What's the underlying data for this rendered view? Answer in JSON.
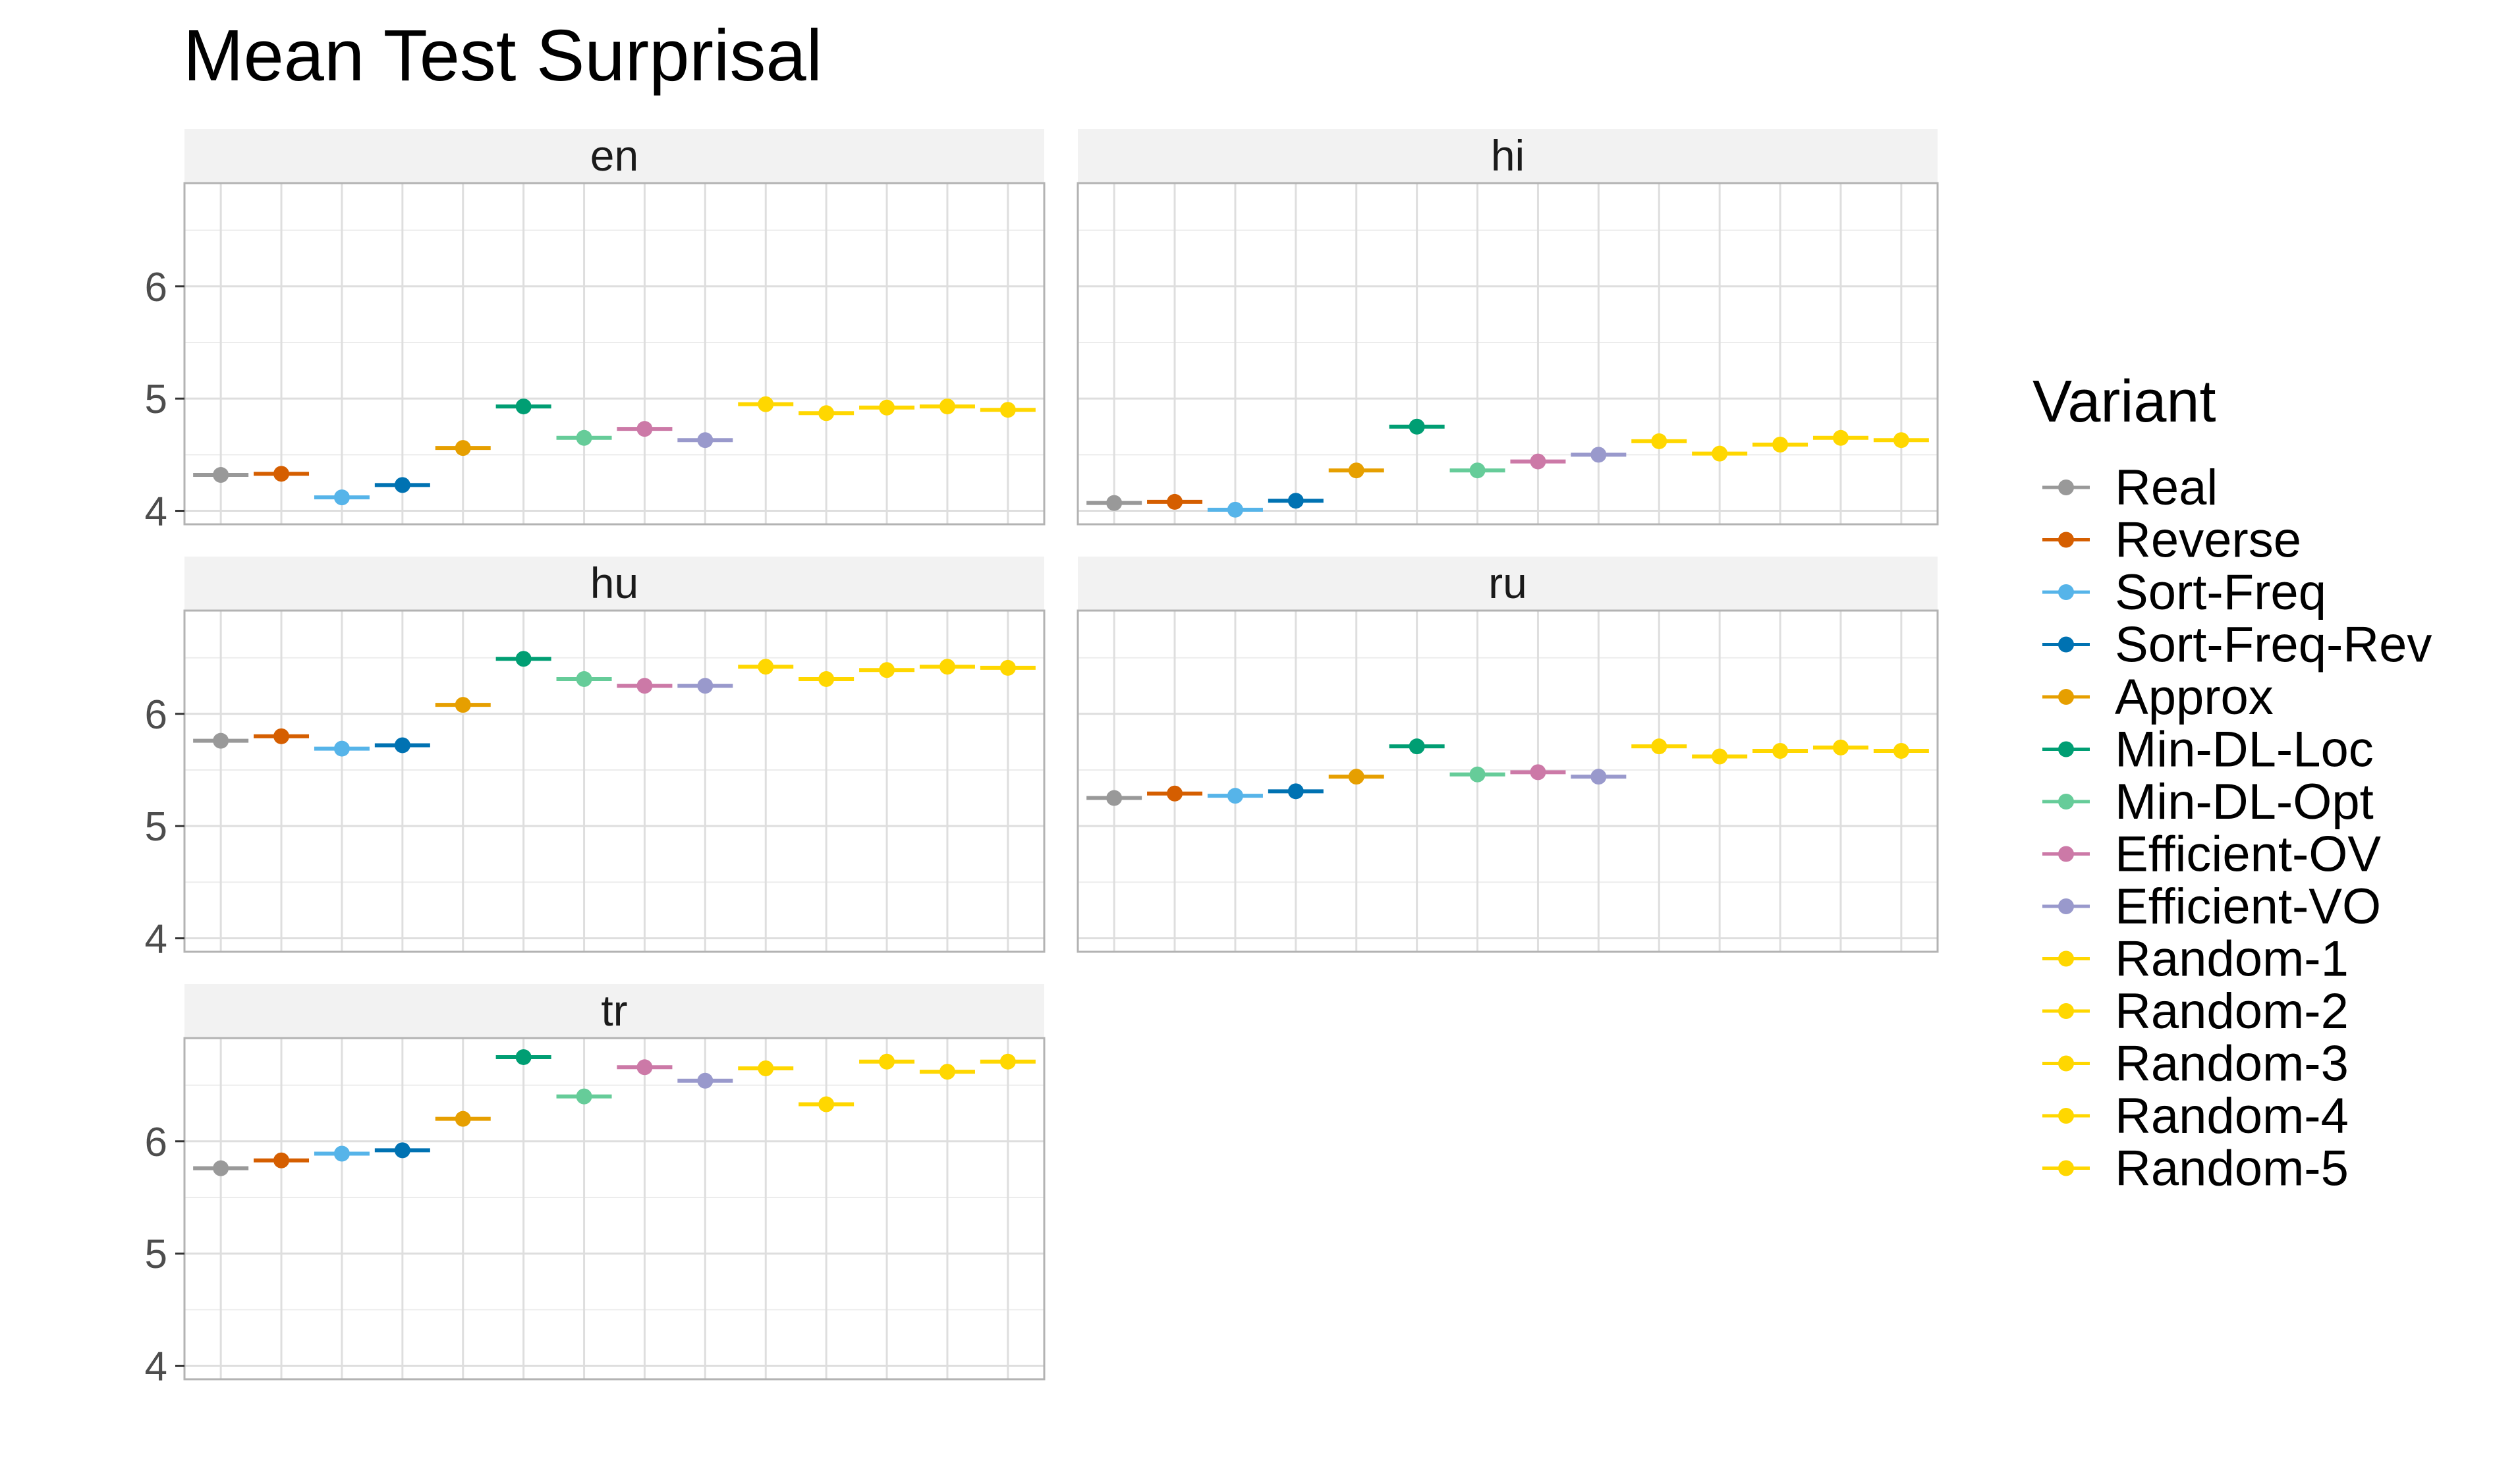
{
  "chart_data": {
    "type": "scatter",
    "title": "Mean Test Surprisal",
    "xlabel": "",
    "ylabel": "",
    "ylim": [
      3.88,
      6.92
    ],
    "yticks": [
      4,
      5,
      6
    ],
    "grid": true,
    "legend": {
      "title": "Variant",
      "position": "right"
    },
    "variants": [
      {
        "name": "Real",
        "color": "#999999"
      },
      {
        "name": "Reverse",
        "color": "#D55E00"
      },
      {
        "name": "Sort-Freq",
        "color": "#56B4E9"
      },
      {
        "name": "Sort-Freq-Rev",
        "color": "#0072B2"
      },
      {
        "name": "Approx",
        "color": "#E69F00"
      },
      {
        "name": "Min-DL-Loc",
        "color": "#009E73"
      },
      {
        "name": "Min-DL-Opt",
        "color": "#66CC99"
      },
      {
        "name": "Efficient-OV",
        "color": "#CC79A7"
      },
      {
        "name": "Efficient-VO",
        "color": "#9999CC"
      },
      {
        "name": "Random-1",
        "color": "#FFD700"
      },
      {
        "name": "Random-2",
        "color": "#FFD700"
      },
      {
        "name": "Random-3",
        "color": "#FFD700"
      },
      {
        "name": "Random-4",
        "color": "#FFD700"
      },
      {
        "name": "Random-5",
        "color": "#FFD700"
      }
    ],
    "panels": [
      {
        "label": "en",
        "values": [
          4.32,
          4.33,
          4.12,
          4.23,
          4.56,
          4.93,
          4.65,
          4.73,
          4.63,
          4.95,
          4.87,
          4.92,
          4.93,
          4.9
        ]
      },
      {
        "label": "hi",
        "values": [
          4.07,
          4.08,
          4.01,
          4.09,
          4.36,
          4.75,
          4.36,
          4.44,
          4.5,
          4.62,
          4.51,
          4.59,
          4.65,
          4.63
        ]
      },
      {
        "label": "hu",
        "values": [
          5.76,
          5.8,
          5.69,
          5.72,
          6.08,
          6.49,
          6.31,
          6.25,
          6.25,
          6.42,
          6.31,
          6.39,
          6.42,
          6.41
        ]
      },
      {
        "label": "ru",
        "values": [
          5.25,
          5.29,
          5.27,
          5.31,
          5.44,
          5.71,
          5.46,
          5.48,
          5.44,
          5.71,
          5.62,
          5.67,
          5.7,
          5.67
        ]
      },
      {
        "label": "tr",
        "values": [
          5.76,
          5.83,
          5.89,
          5.92,
          6.2,
          6.75,
          6.4,
          6.66,
          6.54,
          6.65,
          6.33,
          6.71,
          6.62,
          6.71
        ]
      }
    ]
  }
}
